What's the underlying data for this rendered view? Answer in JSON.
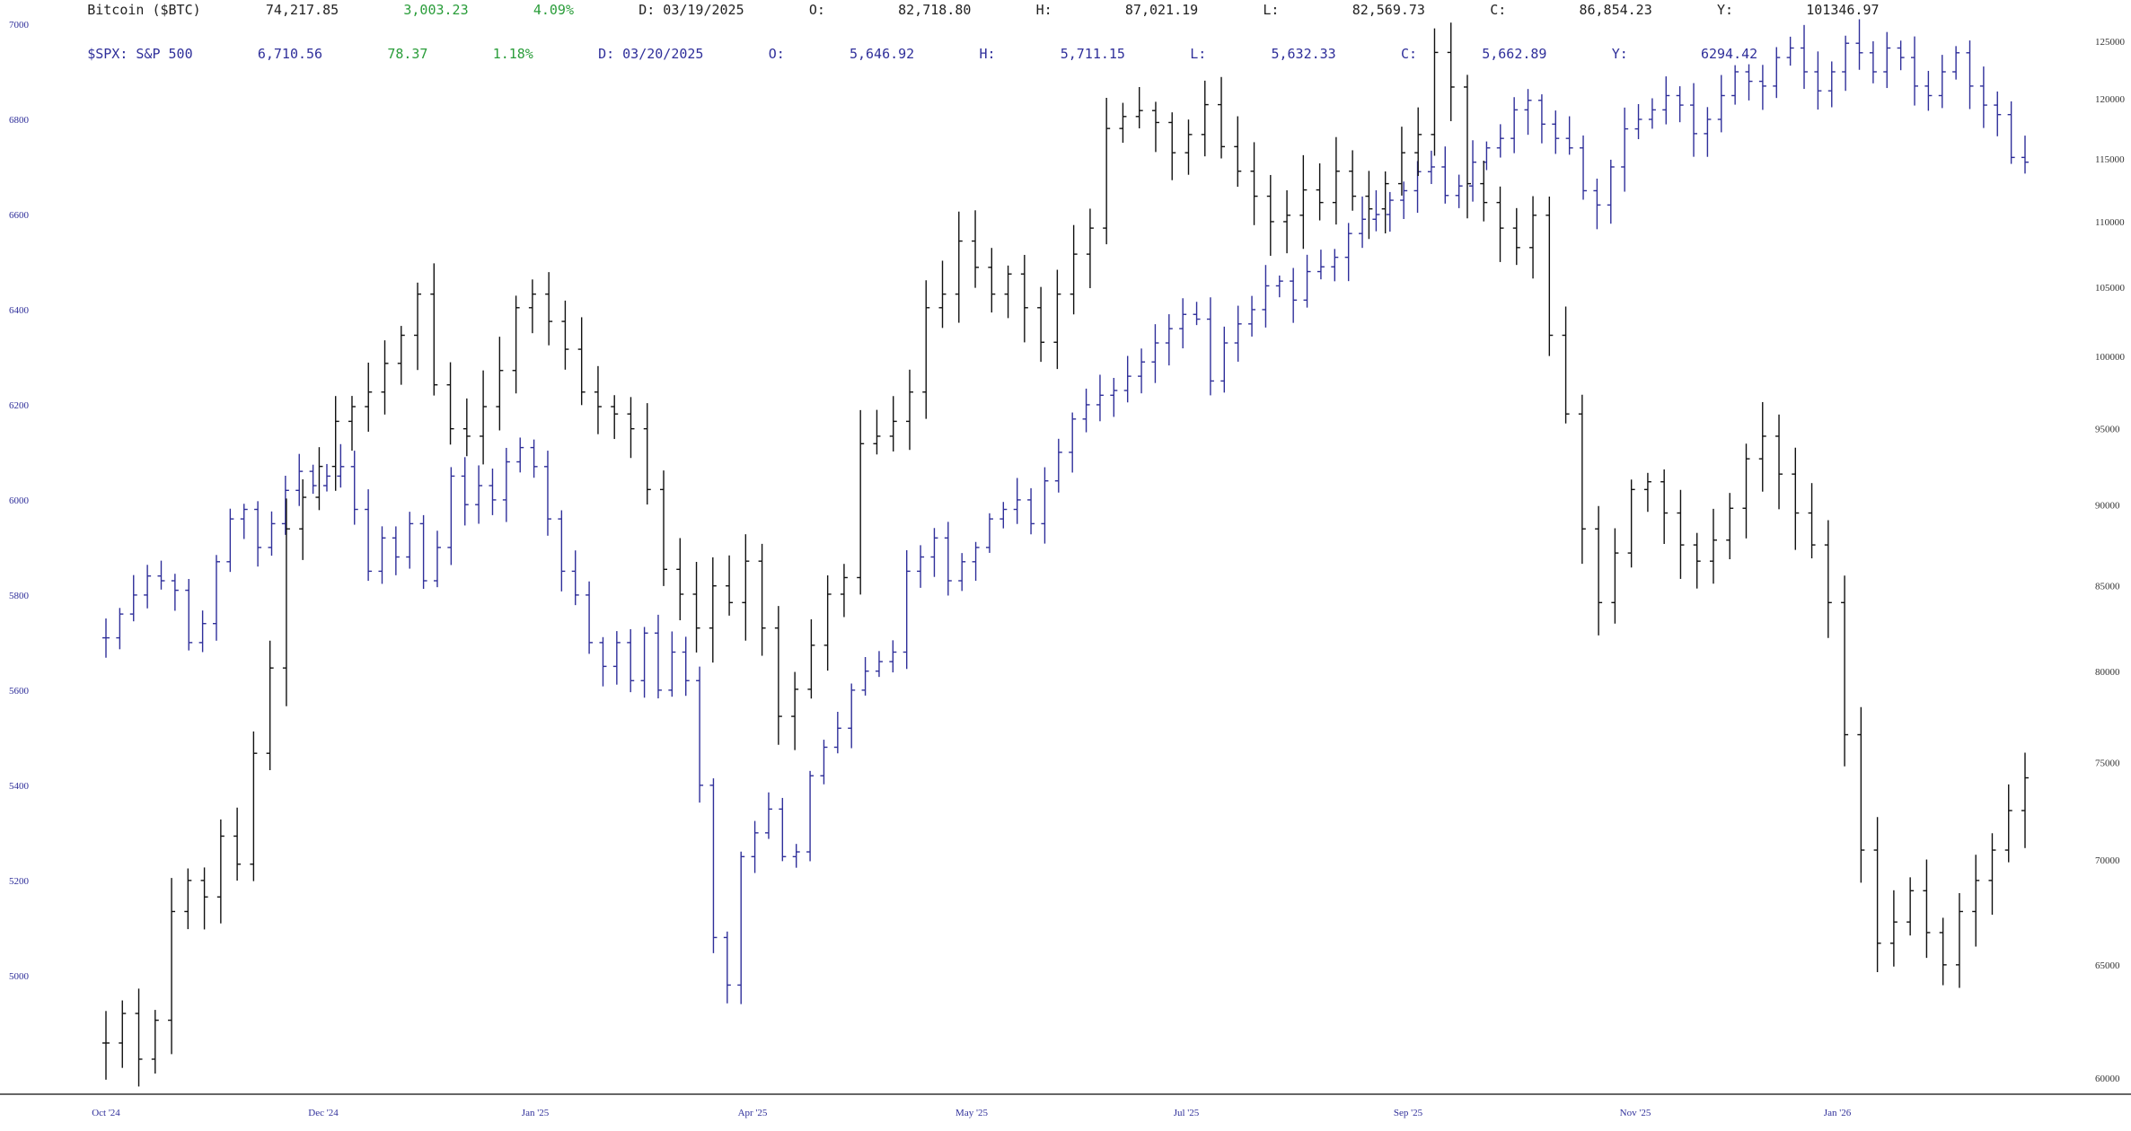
{
  "colors": {
    "btc": "#111111",
    "spx": "#2f2f9a",
    "up": "#2a9d3a",
    "axis": "#333333"
  },
  "header": {
    "btc": {
      "name": "Bitcoin ($BTC)",
      "last": "74,217.85",
      "chg": "3,003.23",
      "pct": "4.09%",
      "date": "D: 03/19/2025",
      "o_label": "O:",
      "o": "82,718.80",
      "h_label": "H:",
      "h": "87,021.19",
      "l_label": "L:",
      "l": "82,569.73",
      "c_label": "C:",
      "c": "86,854.23",
      "y_label": "Y:",
      "y": "101346.97"
    },
    "spx": {
      "name": "$SPX: S&P 500",
      "last": "6,710.56",
      "chg": "78.37",
      "pct": "1.18%",
      "date": "D: 03/20/2025",
      "o_label": "O:",
      "o": "5,646.92",
      "h_label": "H:",
      "h": "5,711.15",
      "l_label": "L:",
      "l": "5,632.33",
      "c_label": "C:",
      "c": "5,662.89",
      "y_label": "Y:",
      "y": "6294.42"
    }
  },
  "chart_data": {
    "type": "line",
    "style": "ohlc-bars",
    "title": "",
    "xlabel": "",
    "ylabel": "",
    "grid": false,
    "legend": "top-left",
    "x_ticks": [
      "Oct '24",
      "Dec '24",
      "Jan '25",
      "Apr '25",
      "May '25",
      "Jul '25",
      "Sep '25",
      "Nov '25",
      "Jan '26"
    ],
    "left_axis": {
      "series": "$SPX",
      "ticks": [
        7000,
        6800,
        6600,
        6400,
        6200,
        6000,
        5800,
        5600,
        5400,
        5200,
        5000
      ],
      "ylim": [
        4760,
        7000
      ]
    },
    "right_axis": {
      "series": "$BTC",
      "scale": "log",
      "ticks": [
        125000,
        120000,
        115000,
        110000,
        105000,
        100000,
        95000,
        90000,
        85000,
        80000,
        75000,
        70000,
        65000,
        60000
      ],
      "ylim": [
        59500,
        126500
      ]
    },
    "series": [
      {
        "name": "$SPX",
        "axis": "left",
        "points": [
          [
            "Oct '24",
            5710
          ],
          [
            "Oct '24",
            5760
          ],
          [
            "Oct '24",
            5800
          ],
          [
            "Oct '24",
            5840
          ],
          [
            "Oct '24",
            5830
          ],
          [
            "Oct '24",
            5810
          ],
          [
            "Oct '24",
            5700
          ],
          [
            "Oct '24",
            5740
          ],
          [
            "Oct '24",
            5870
          ],
          [
            "Oct '24",
            5960
          ],
          [
            "Oct '24",
            5980
          ],
          [
            "Dec '24",
            5900
          ],
          [
            "Dec '24",
            5950
          ],
          [
            "Dec '24",
            6020
          ],
          [
            "Dec '24",
            6060
          ],
          [
            "Dec '24",
            6030
          ],
          [
            "Dec '24",
            6050
          ],
          [
            "Dec '24",
            6070
          ],
          [
            "Dec '24",
            5980
          ],
          [
            "Dec '24",
            5850
          ],
          [
            "Dec '24",
            5920
          ],
          [
            "Dec '24",
            5880
          ],
          [
            "Jan '25",
            5950
          ],
          [
            "Jan '25",
            5830
          ],
          [
            "Jan '25",
            5900
          ],
          [
            "Jan '25",
            6050
          ],
          [
            "Jan '25",
            5990
          ],
          [
            "Jan '25",
            6030
          ],
          [
            "Jan '25",
            6000
          ],
          [
            "Jan '25",
            6080
          ],
          [
            "Jan '25",
            6110
          ],
          [
            "Jan '25",
            6070
          ],
          [
            "Jan '25",
            5960
          ],
          [
            "Jan '25",
            5850
          ],
          [
            "Jan '25",
            5800
          ],
          [
            "Jan '25",
            5700
          ],
          [
            "Jan '25",
            5650
          ],
          [
            "Jan '25",
            5700
          ],
          [
            "Jan '25",
            5620
          ],
          [
            "Jan '25",
            5720
          ],
          [
            "Jan '25",
            5600
          ],
          [
            "Jan '25",
            5680
          ],
          [
            "Jan '25",
            5620
          ],
          [
            "Apr '25",
            5400
          ],
          [
            "Apr '25",
            5080
          ],
          [
            "Apr '25",
            4980
          ],
          [
            "Apr '25",
            5250
          ],
          [
            "Apr '25",
            5300
          ],
          [
            "Apr '25",
            5350
          ],
          [
            "Apr '25",
            5250
          ],
          [
            "Apr '25",
            5260
          ],
          [
            "Apr '25",
            5420
          ],
          [
            "Apr '25",
            5480
          ],
          [
            "Apr '25",
            5520
          ],
          [
            "Apr '25",
            5600
          ],
          [
            "Apr '25",
            5640
          ],
          [
            "Apr '25",
            5660
          ],
          [
            "Apr '25",
            5680
          ],
          [
            "May '25",
            5850
          ],
          [
            "May '25",
            5880
          ],
          [
            "May '25",
            5920
          ],
          [
            "May '25",
            5830
          ],
          [
            "May '25",
            5870
          ],
          [
            "May '25",
            5900
          ],
          [
            "May '25",
            5960
          ],
          [
            "May '25",
            5980
          ],
          [
            "May '25",
            6000
          ],
          [
            "May '25",
            5950
          ],
          [
            "May '25",
            6040
          ],
          [
            "May '25",
            6100
          ],
          [
            "May '25",
            6170
          ],
          [
            "May '25",
            6200
          ],
          [
            "May '25",
            6220
          ],
          [
            "May '25",
            6230
          ],
          [
            "Jul '25",
            6260
          ],
          [
            "Jul '25",
            6290
          ],
          [
            "Jul '25",
            6330
          ],
          [
            "Jul '25",
            6360
          ],
          [
            "Jul '25",
            6390
          ],
          [
            "Jul '25",
            6380
          ],
          [
            "Jul '25",
            6250
          ],
          [
            "Jul '25",
            6330
          ],
          [
            "Jul '25",
            6370
          ],
          [
            "Jul '25",
            6400
          ],
          [
            "Jul '25",
            6450
          ],
          [
            "Jul '25",
            6460
          ],
          [
            "Jul '25",
            6420
          ],
          [
            "Jul '25",
            6480
          ],
          [
            "Jul '25",
            6490
          ],
          [
            "Jul '25",
            6510
          ],
          [
            "Jul '25",
            6560
          ],
          [
            "Jul '25",
            6590
          ],
          [
            "Jul '25",
            6600
          ],
          [
            "Jul '25",
            6630
          ],
          [
            "Sep '25",
            6650
          ],
          [
            "Sep '25",
            6690
          ],
          [
            "Sep '25",
            6700
          ],
          [
            "Sep '25",
            6640
          ],
          [
            "Sep '25",
            6660
          ],
          [
            "Sep '25",
            6710
          ],
          [
            "Sep '25",
            6740
          ],
          [
            "Sep '25",
            6760
          ],
          [
            "Sep '25",
            6820
          ],
          [
            "Sep '25",
            6840
          ],
          [
            "Sep '25",
            6790
          ],
          [
            "Sep '25",
            6760
          ],
          [
            "Sep '25",
            6740
          ],
          [
            "Nov '25",
            6650
          ],
          [
            "Nov '25",
            6620
          ],
          [
            "Nov '25",
            6700
          ],
          [
            "Nov '25",
            6780
          ],
          [
            "Nov '25",
            6800
          ],
          [
            "Nov '25",
            6820
          ],
          [
            "Nov '25",
            6850
          ],
          [
            "Nov '25",
            6830
          ],
          [
            "Nov '25",
            6770
          ],
          [
            "Nov '25",
            6800
          ],
          [
            "Nov '25",
            6850
          ],
          [
            "Nov '25",
            6900
          ],
          [
            "Nov '25",
            6880
          ],
          [
            "Nov '25",
            6870
          ],
          [
            "Nov '25",
            6930
          ],
          [
            "Nov '25",
            6950
          ],
          [
            "Nov '25",
            6900
          ],
          [
            "Jan '26",
            6860
          ],
          [
            "Jan '26",
            6900
          ],
          [
            "Jan '26",
            6960
          ],
          [
            "Jan '26",
            6940
          ],
          [
            "Jan '26",
            6900
          ],
          [
            "Jan '26",
            6950
          ],
          [
            "Jan '26",
            6930
          ],
          [
            "Jan '26",
            6870
          ],
          [
            "Jan '26",
            6850
          ],
          [
            "Jan '26",
            6900
          ],
          [
            "Jan '26",
            6940
          ],
          [
            "Jan '26",
            6870
          ],
          [
            "Jan '26",
            6830
          ],
          [
            "Jan '26",
            6810
          ],
          [
            "Jan '26",
            6720
          ],
          [
            "Jan '26",
            6710
          ]
        ]
      },
      {
        "name": "$BTC",
        "axis": "right",
        "points": [
          [
            "Oct '24",
            61500
          ],
          [
            "Oct '24",
            62800
          ],
          [
            "Oct '24",
            60800
          ],
          [
            "Oct '24",
            62500
          ],
          [
            "Oct '24",
            67500
          ],
          [
            "Oct '24",
            69000
          ],
          [
            "Oct '24",
            68200
          ],
          [
            "Oct '24",
            71200
          ],
          [
            "Oct '24",
            69800
          ],
          [
            "Oct '24",
            75500
          ],
          [
            "Oct '24",
            80200
          ],
          [
            "Oct '24",
            88500
          ],
          [
            "Oct '24",
            90500
          ],
          [
            "Oct '24",
            92500
          ],
          [
            "Dec '24",
            95500
          ],
          [
            "Dec '24",
            96500
          ],
          [
            "Dec '24",
            97500
          ],
          [
            "Dec '24",
            99500
          ],
          [
            "Dec '24",
            101500
          ],
          [
            "Dec '24",
            104500
          ],
          [
            "Dec '24",
            98000
          ],
          [
            "Dec '24",
            95000
          ],
          [
            "Dec '24",
            94500
          ],
          [
            "Dec '24",
            96500
          ],
          [
            "Jan '25",
            99000
          ],
          [
            "Jan '25",
            103500
          ],
          [
            "Jan '25",
            104500
          ],
          [
            "Jan '25",
            102500
          ],
          [
            "Jan '25",
            100500
          ],
          [
            "Jan '25",
            97500
          ],
          [
            "Jan '25",
            96500
          ],
          [
            "Jan '25",
            96000
          ],
          [
            "Jan '25",
            95000
          ],
          [
            "Jan '25",
            91000
          ],
          [
            "Jan '25",
            86000
          ],
          [
            "Jan '25",
            84500
          ],
          [
            "Jan '25",
            82500
          ],
          [
            "Jan '25",
            85000
          ],
          [
            "Jan '25",
            84000
          ],
          [
            "Jan '25",
            86500
          ],
          [
            "Apr '25",
            82500
          ],
          [
            "Apr '25",
            77500
          ],
          [
            "Apr '25",
            79000
          ],
          [
            "Apr '25",
            81500
          ],
          [
            "Apr '25",
            84500
          ],
          [
            "Apr '25",
            85500
          ],
          [
            "Apr '25",
            94000
          ],
          [
            "Apr '25",
            94500
          ],
          [
            "Apr '25",
            95500
          ],
          [
            "Apr '25",
            97500
          ],
          [
            "May '25",
            103500
          ],
          [
            "May '25",
            104500
          ],
          [
            "May '25",
            108500
          ],
          [
            "May '25",
            106500
          ],
          [
            "May '25",
            104500
          ],
          [
            "May '25",
            106000
          ],
          [
            "May '25",
            103500
          ],
          [
            "May '25",
            101000
          ],
          [
            "May '25",
            104500
          ],
          [
            "May '25",
            107500
          ],
          [
            "May '25",
            109500
          ],
          [
            "May '25",
            117500
          ],
          [
            "Jul '25",
            118500
          ],
          [
            "Jul '25",
            119000
          ],
          [
            "Jul '25",
            118000
          ],
          [
            "Jul '25",
            115500
          ],
          [
            "Jul '25",
            117000
          ],
          [
            "Jul '25",
            119500
          ],
          [
            "Jul '25",
            116000
          ],
          [
            "Jul '25",
            114000
          ],
          [
            "Jul '25",
            112000
          ],
          [
            "Jul '25",
            110000
          ],
          [
            "Jul '25",
            110500
          ],
          [
            "Jul '25",
            112500
          ],
          [
            "Jul '25",
            111500
          ],
          [
            "Jul '25",
            114000
          ],
          [
            "Sep '25",
            112000
          ],
          [
            "Sep '25",
            111000
          ],
          [
            "Sep '25",
            113000
          ],
          [
            "Sep '25",
            115500
          ],
          [
            "Sep '25",
            117000
          ],
          [
            "Sep '25",
            124000
          ],
          [
            "Sep '25",
            121000
          ],
          [
            "Sep '25",
            113000
          ],
          [
            "Sep '25",
            111500
          ],
          [
            "Sep '25",
            109500
          ],
          [
            "Sep '25",
            108000
          ],
          [
            "Sep '25",
            110500
          ],
          [
            "Nov '25",
            101500
          ],
          [
            "Nov '25",
            96000
          ],
          [
            "Nov '25",
            88500
          ],
          [
            "Nov '25",
            84000
          ],
          [
            "Nov '25",
            87000
          ],
          [
            "Nov '25",
            91000
          ],
          [
            "Nov '25",
            91500
          ],
          [
            "Nov '25",
            89500
          ],
          [
            "Nov '25",
            87500
          ],
          [
            "Nov '25",
            86500
          ],
          [
            "Nov '25",
            87800
          ],
          [
            "Nov '25",
            89800
          ],
          [
            "Nov '25",
            93000
          ],
          [
            "Jan '26",
            94500
          ],
          [
            "Jan '26",
            92000
          ],
          [
            "Jan '26",
            89500
          ],
          [
            "Jan '26",
            87500
          ],
          [
            "Jan '26",
            84000
          ],
          [
            "Jan '26",
            76500
          ],
          [
            "Jan '26",
            70500
          ],
          [
            "Jan '26",
            66000
          ],
          [
            "Jan '26",
            67000
          ],
          [
            "Jan '26",
            68500
          ],
          [
            "Jan '26",
            66500
          ],
          [
            "Jan '26",
            65000
          ],
          [
            "Jan '26",
            67500
          ],
          [
            "Jan '26",
            69000
          ],
          [
            "Jan '26",
            70500
          ],
          [
            "Jan '26",
            72500
          ],
          [
            "Jan '26",
            74200
          ]
        ]
      }
    ]
  }
}
